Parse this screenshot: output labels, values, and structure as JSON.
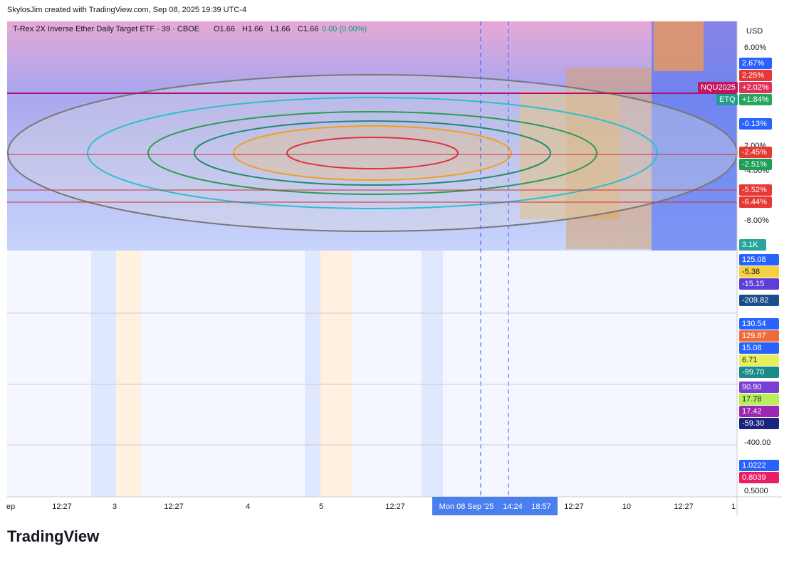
{
  "header": {
    "attribution": "SkylosJim created with TradingView.com, Sep 08, 2025 19:39 UTC-4"
  },
  "symbol": {
    "name": "T-Rex 2X Inverse Ether Daily Target ETF · 39 · CBOE",
    "open": "O1.66",
    "high": "H1.66",
    "low": "L1.66",
    "close": "C1.66",
    "change": "0.00 (0.00%)"
  },
  "price_axis": {
    "currency": "USD",
    "ticks": [
      "6.00%",
      "2.00%",
      "-4.00%",
      "-8.00%"
    ],
    "badges": [
      "2.67%",
      "2.25%",
      "+2.02%",
      "+1.84%",
      "-0.13%",
      "-2.45%",
      "-2.51%",
      "-5.52%",
      "-6.44%",
      "3.1K"
    ],
    "symbols": [
      "NQU2025",
      "ETQ"
    ]
  },
  "panes": [
    {
      "labels": [
        "125.08",
        "-5.38",
        "-15.15",
        "-209.82"
      ]
    },
    {
      "labels": [
        "130.54",
        "129.87",
        "15.08",
        "6.71",
        "-99.70"
      ]
    },
    {
      "labels": [
        "90.90",
        "17.78",
        "17.42",
        "-59.30",
        "-400.00"
      ]
    },
    {
      "labels": [
        "1.0222",
        "0.8039",
        "0.5000"
      ]
    }
  ],
  "time_axis": {
    "labels": [
      "ep",
      "12:27",
      "3",
      "12:27",
      "4",
      "5",
      "12:27",
      "12:27",
      "10",
      "12:27",
      "1"
    ],
    "cursor": "Mon 08 Sep '25",
    "marks": [
      "14:24",
      "18:57"
    ]
  },
  "logo": "TradingView"
}
